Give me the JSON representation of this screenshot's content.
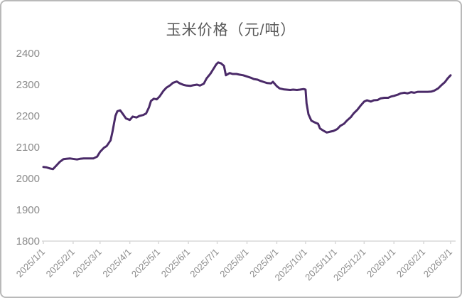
{
  "page": {
    "background": "#ffffff",
    "card_border_color": "#b9b9b9"
  },
  "chart_data": {
    "type": "line",
    "title": "玉米价格（元/吨）",
    "xlabel": "",
    "ylabel": "",
    "grid": "off",
    "legend": "none",
    "y_axis": {
      "min": 1800,
      "max": 2400,
      "step": 100,
      "ticks": [
        2400,
        2300,
        2200,
        2100,
        2000,
        1900,
        1800
      ],
      "label_color": "#8c8c8c"
    },
    "x_axis": {
      "axis_color": "#d9d9d9",
      "label_color": "#8c8c8c",
      "label_rotation": -45,
      "tick_labels": [
        "2025/1/1",
        "2025/2/1",
        "2025/3/1",
        "2025/4/1",
        "2025/5/1",
        "2025/6/1",
        "2025/7/1",
        "2025/8/1",
        "2025/9/1",
        "2025/10/1",
        "2025/11/1",
        "2025/12/1",
        "2026/1/1",
        "2026/2/1",
        "2026/3/1"
      ]
    },
    "series": [
      {
        "name": "玉米价格",
        "color": "#4a2a68",
        "stroke_width": 3,
        "x": [
          "2025/1/1",
          "2025/1/4",
          "2025/1/8",
          "2025/1/11",
          "2025/1/15",
          "2025/1/18",
          "2025/1/22",
          "2025/1/25",
          "2025/1/29",
          "2025/2/5",
          "2025/2/8",
          "2025/2/12",
          "2025/2/15",
          "2025/2/19",
          "2025/2/22",
          "2025/2/26",
          "2025/3/1",
          "2025/3/5",
          "2025/3/8",
          "2025/3/12",
          "2025/3/14",
          "2025/3/17",
          "2025/3/19",
          "2025/3/22",
          "2025/3/25",
          "2025/3/28",
          "2025/4/1",
          "2025/4/4",
          "2025/4/8",
          "2025/4/11",
          "2025/4/15",
          "2025/4/18",
          "2025/4/21",
          "2025/4/23",
          "2025/4/26",
          "2025/4/29",
          "2025/5/2",
          "2025/5/6",
          "2025/5/9",
          "2025/5/13",
          "2025/5/16",
          "2025/5/20",
          "2025/5/23",
          "2025/5/27",
          "2025/5/30",
          "2025/6/3",
          "2025/6/6",
          "2025/6/10",
          "2025/6/13",
          "2025/6/17",
          "2025/6/20",
          "2025/6/24",
          "2025/6/27",
          "2025/6/30",
          "2025/7/2",
          "2025/7/5",
          "2025/7/8",
          "2025/7/10",
          "2025/7/14",
          "2025/7/17",
          "2025/7/21",
          "2025/7/24",
          "2025/7/28",
          "2025/8/1",
          "2025/8/5",
          "2025/8/8",
          "2025/8/12",
          "2025/8/15",
          "2025/8/19",
          "2025/8/22",
          "2025/8/26",
          "2025/8/28",
          "2025/9/1",
          "2025/9/4",
          "2025/9/8",
          "2025/9/11",
          "2025/9/15",
          "2025/9/18",
          "2025/9/22",
          "2025/9/25",
          "2025/9/29",
          "2025/10/1",
          "2025/10/2",
          "2025/10/4",
          "2025/10/7",
          "2025/10/10",
          "2025/10/14",
          "2025/10/16",
          "2025/10/20",
          "2025/10/23",
          "2025/10/27",
          "2025/10/30",
          "2025/11/3",
          "2025/11/6",
          "2025/11/10",
          "2025/11/13",
          "2025/11/17",
          "2025/11/20",
          "2025/11/24",
          "2025/11/27",
          "2025/12/1",
          "2025/12/4",
          "2025/12/8",
          "2025/12/11",
          "2025/12/15",
          "2025/12/18",
          "2025/12/22",
          "2025/12/26",
          "2025/12/29",
          "2026/1/1",
          "2026/1/5",
          "2026/1/8",
          "2026/1/12",
          "2026/1/15",
          "2026/1/19",
          "2026/1/22",
          "2026/1/26",
          "2026/1/29",
          "2026/2/2",
          "2026/2/5",
          "2026/2/9",
          "2026/2/12",
          "2026/2/16",
          "2026/2/19",
          "2026/2/23",
          "2026/2/26",
          "2026/3/1"
        ],
        "values": [
          2037,
          2036,
          2032,
          2030,
          2043,
          2053,
          2062,
          2063,
          2064,
          2061,
          2063,
          2064,
          2064,
          2064,
          2064,
          2070,
          2085,
          2098,
          2104,
          2122,
          2150,
          2200,
          2215,
          2218,
          2205,
          2192,
          2187,
          2198,
          2195,
          2200,
          2203,
          2208,
          2228,
          2248,
          2255,
          2253,
          2262,
          2280,
          2290,
          2298,
          2306,
          2310,
          2304,
          2299,
          2297,
          2296,
          2298,
          2300,
          2297,
          2303,
          2320,
          2335,
          2350,
          2365,
          2371,
          2368,
          2360,
          2330,
          2337,
          2334,
          2334,
          2332,
          2330,
          2326,
          2322,
          2318,
          2316,
          2312,
          2308,
          2305,
          2304,
          2309,
          2295,
          2288,
          2285,
          2284,
          2283,
          2284,
          2283,
          2284,
          2286,
          2284,
          2240,
          2205,
          2185,
          2180,
          2175,
          2160,
          2152,
          2147,
          2150,
          2152,
          2158,
          2168,
          2175,
          2185,
          2196,
          2208,
          2220,
          2232,
          2246,
          2250,
          2246,
          2250,
          2251,
          2256,
          2258,
          2258,
          2262,
          2264,
          2268,
          2272,
          2274,
          2272,
          2276,
          2274,
          2277,
          2277,
          2277,
          2277,
          2278,
          2281,
          2288,
          2297,
          2308,
          2320,
          2330
        ]
      }
    ]
  }
}
